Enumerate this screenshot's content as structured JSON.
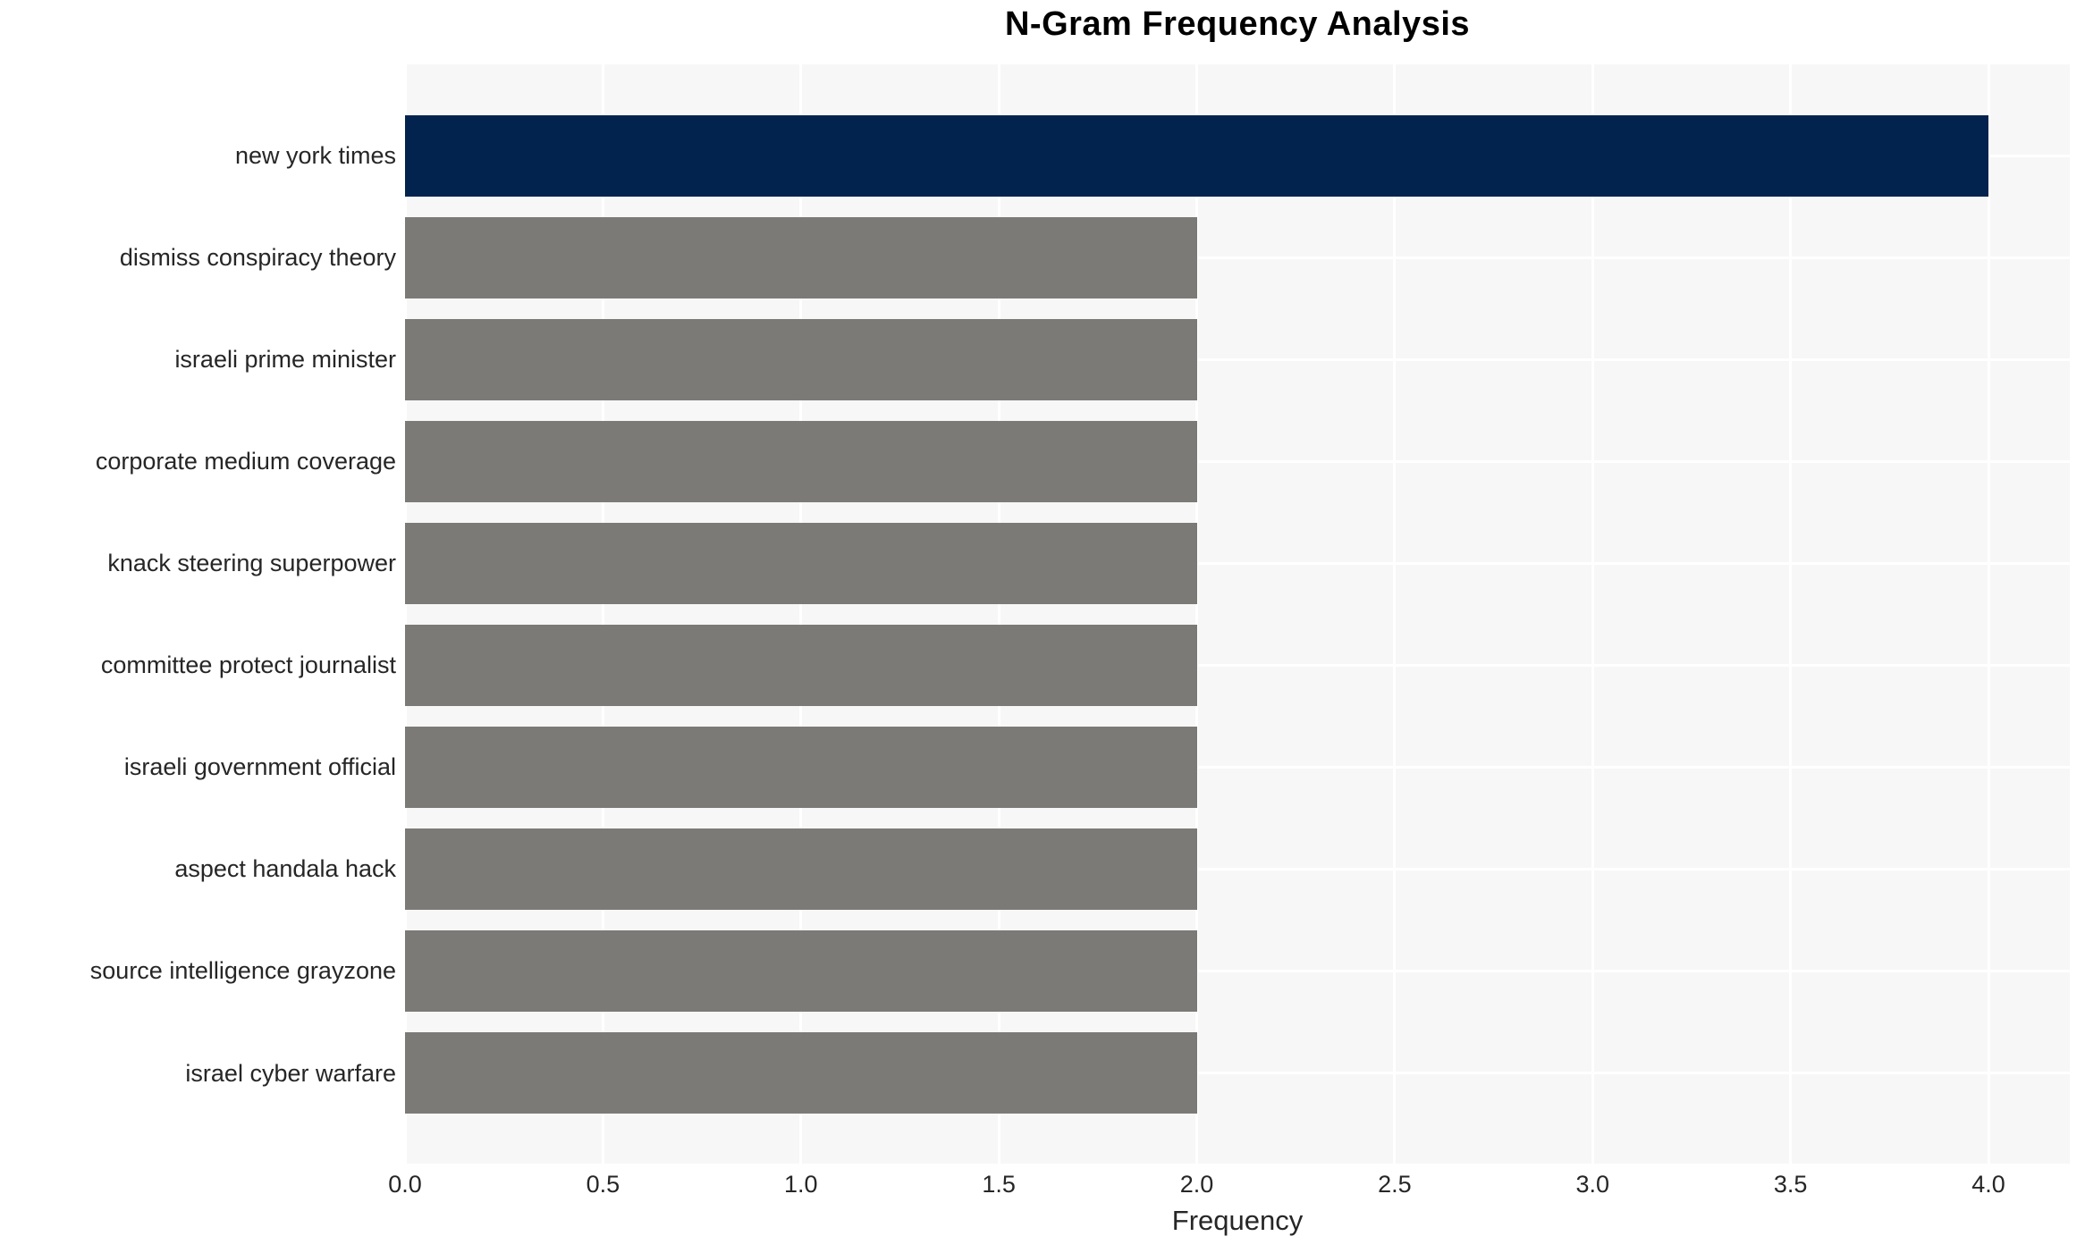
{
  "chart_data": {
    "type": "bar",
    "orientation": "horizontal",
    "title": "N-Gram Frequency Analysis",
    "xlabel": "Frequency",
    "ylabel": "",
    "categories": [
      "new york times",
      "dismiss conspiracy theory",
      "israeli prime minister",
      "corporate medium coverage",
      "knack steering superpower",
      "committee protect journalist",
      "israeli government official",
      "aspect handala hack",
      "source intelligence grayzone",
      "israel cyber warfare"
    ],
    "values": [
      4,
      2,
      2,
      2,
      2,
      2,
      2,
      2,
      2,
      2
    ],
    "xlim": [
      0,
      4.2
    ],
    "xticks": [
      0.0,
      0.5,
      1.0,
      1.5,
      2.0,
      2.5,
      3.0,
      3.5,
      4.0
    ],
    "xtick_labels": [
      "0.0",
      "0.5",
      "1.0",
      "1.5",
      "2.0",
      "2.5",
      "3.0",
      "3.5",
      "4.0"
    ],
    "grid": true,
    "legend": false,
    "colors": {
      "highlight_bar": "#02234e",
      "default_bar": "#7c7a77",
      "plot_background": "#f7f7f7",
      "gridline": "#ffffff",
      "tick_text": "#262626",
      "title_text": "#000000"
    }
  }
}
